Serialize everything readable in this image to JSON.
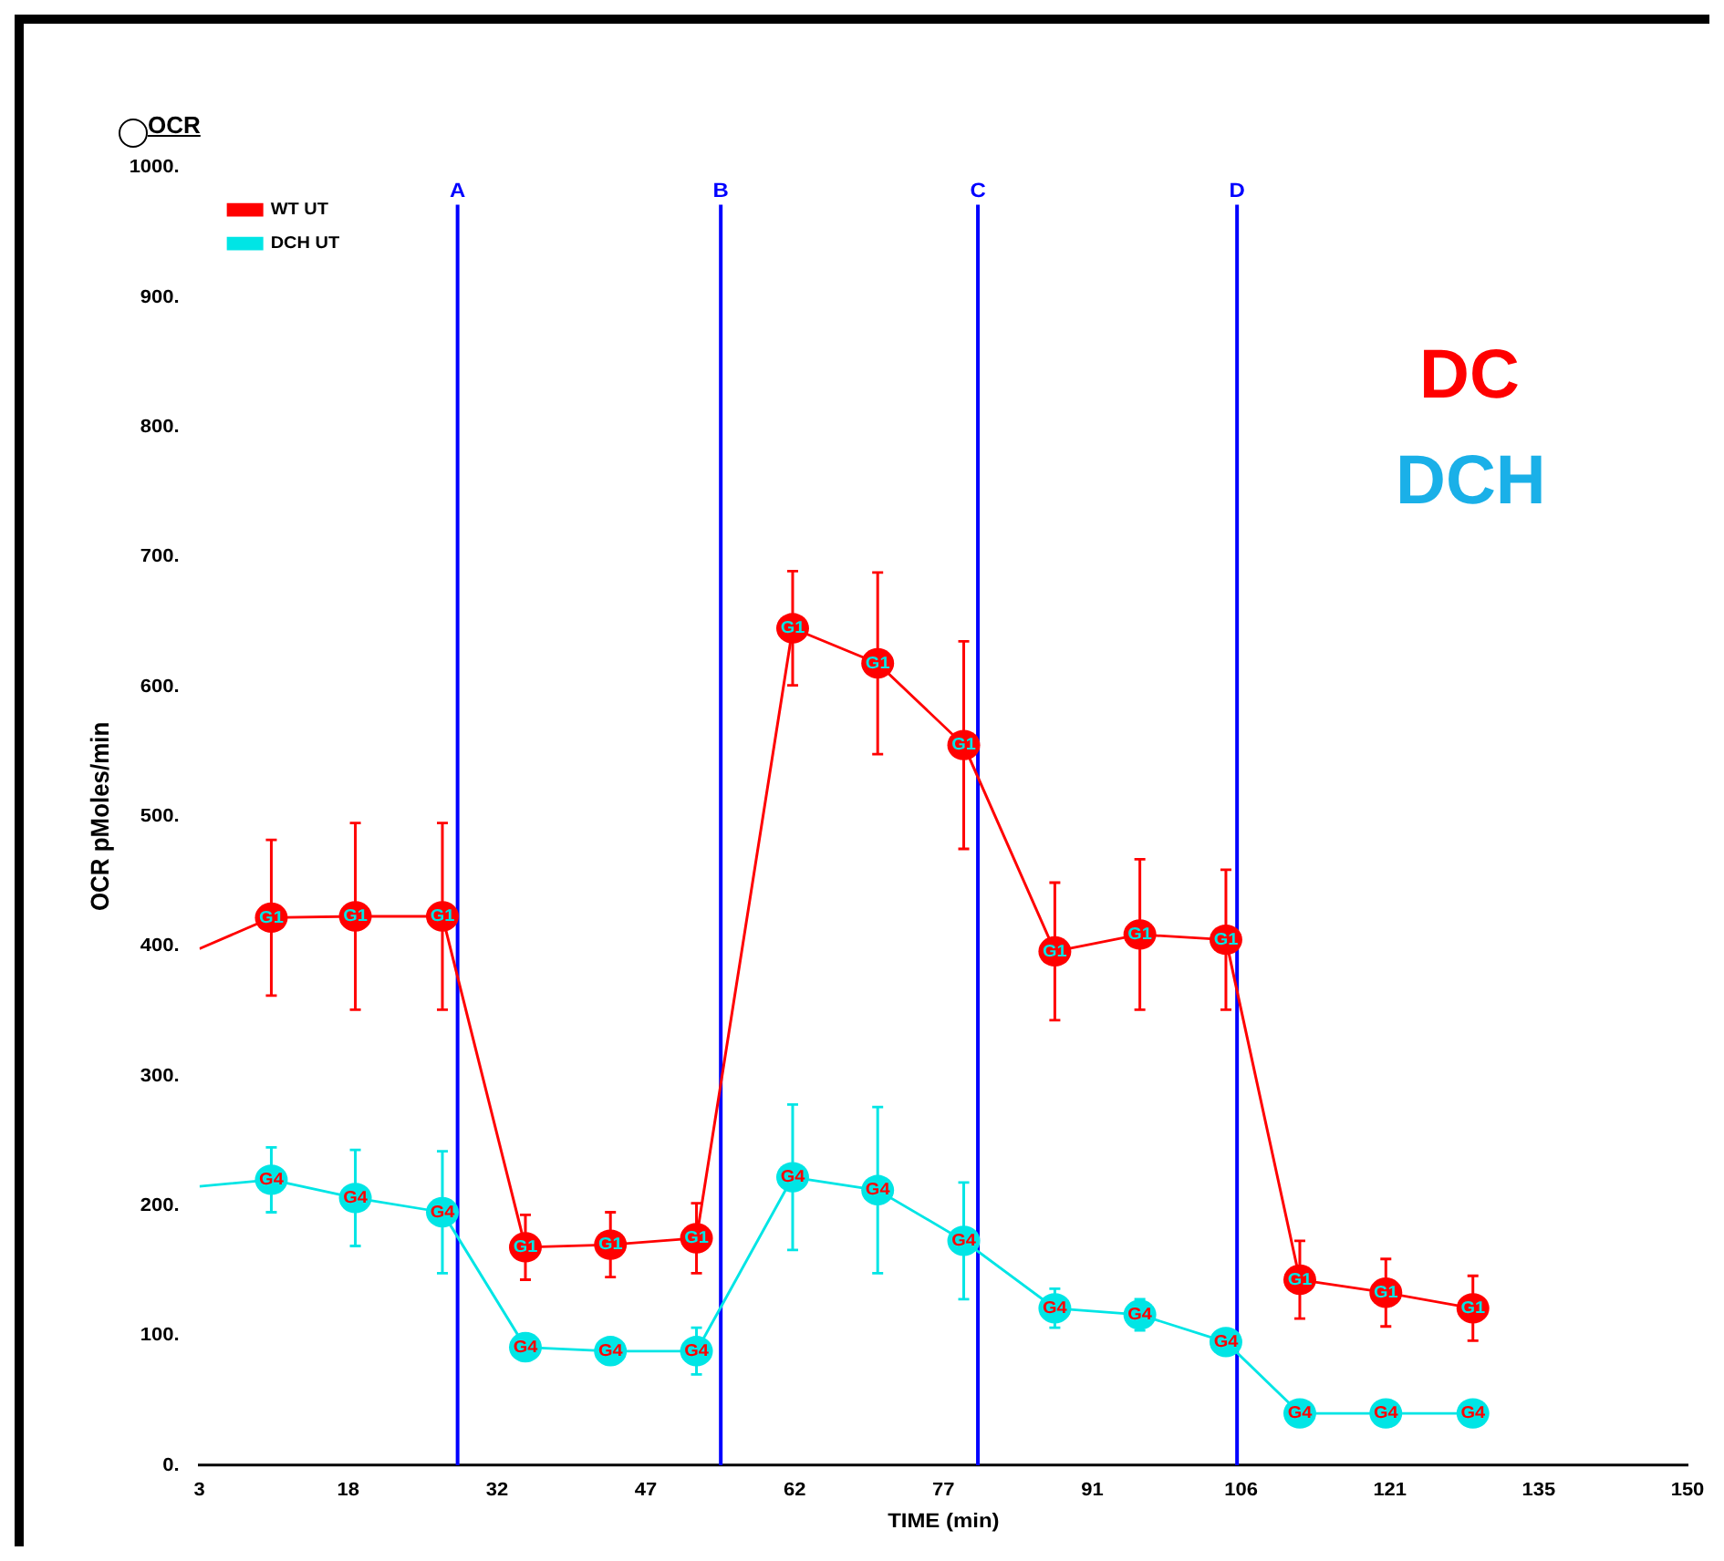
{
  "chart_data": {
    "type": "line",
    "xlabel": "TIME (min)",
    "ylabel": "OCR pMoles/min",
    "xlim": [
      3,
      150
    ],
    "xticks": [
      3,
      {
        "value": 17.7,
        "label": "18"
      },
      {
        "value": 32.4,
        "label": "32"
      },
      {
        "value": 47.1,
        "label": "47"
      },
      {
        "value": 61.8,
        "label": "62"
      },
      {
        "value": 76.5,
        "label": "77"
      },
      {
        "value": 91.2,
        "label": "91"
      },
      {
        "value": 105.9,
        "label": "106"
      },
      {
        "value": 120.6,
        "label": "121"
      },
      {
        "value": 135.3,
        "label": "135"
      },
      150
    ],
    "ylim": [
      0,
      1000
    ],
    "yticks": [
      {
        "value": 0,
        "label": "0."
      },
      {
        "value": 100,
        "label": "100."
      },
      {
        "value": 200,
        "label": "200."
      },
      {
        "value": 300,
        "label": "300."
      },
      {
        "value": 400,
        "label": "400."
      },
      {
        "value": 500,
        "label": "500."
      },
      {
        "value": 600,
        "label": "600."
      },
      {
        "value": 700,
        "label": "700."
      },
      {
        "value": 800,
        "label": "800."
      },
      {
        "value": 900,
        "label": "900."
      },
      {
        "value": 1000,
        "label": "1000."
      }
    ],
    "x": [
      3,
      10.1,
      18.4,
      27,
      35.2,
      43.6,
      52.1,
      61.6,
      70,
      78.5,
      87.5,
      95.9,
      104.4,
      111.7,
      120.2,
      128.8
    ],
    "series": [
      {
        "name": "WT UT",
        "color": "#ff0000",
        "values": [
          398,
          422,
          423,
          423,
          168,
          170,
          175,
          645,
          618,
          555,
          396,
          409,
          405,
          143,
          133,
          121
        ],
        "errors": [
          null,
          60,
          72,
          72,
          25,
          25,
          27,
          44,
          70,
          80,
          53,
          58,
          54,
          30,
          26,
          25
        ],
        "value_labels": [
          null,
          "G1",
          "G1",
          "G1",
          "G1",
          "G1",
          "G1",
          "G1",
          "G1",
          "G1",
          "G1",
          "G1",
          "G1",
          "G1",
          "G1",
          "G1"
        ]
      },
      {
        "name": "DCH UT",
        "color": "#00e5e5",
        "values": [
          215,
          220,
          206,
          195,
          91,
          88,
          88,
          222,
          212,
          173,
          121,
          116,
          95,
          40,
          40,
          40
        ],
        "errors": [
          null,
          25,
          37,
          47,
          10,
          10,
          18,
          56,
          64,
          45,
          15,
          12,
          null,
          null,
          null,
          null
        ],
        "value_labels": [
          null,
          "G4",
          "G4",
          "G4",
          "G4",
          "G4",
          "G4",
          "G4",
          "G4",
          "G4",
          "G4",
          "G4",
          "G4",
          "G4",
          "G4",
          "G4"
        ]
      }
    ],
    "ref_lines": [
      {
        "axis": "x",
        "value": 28.5,
        "label": "A",
        "color": "#0000ff"
      },
      {
        "axis": "x",
        "value": 54.5,
        "label": "B",
        "color": "#0000ff"
      },
      {
        "axis": "x",
        "value": 79.9,
        "label": "C",
        "color": "#0000ff"
      },
      {
        "axis": "x",
        "value": 105.5,
        "label": "D",
        "color": "#0000ff"
      }
    ],
    "annotations": [
      "OCR",
      "DC",
      "DCH"
    ],
    "legend": "top left",
    "grid": false,
    "marker": "circle",
    "line_style": "solid"
  }
}
